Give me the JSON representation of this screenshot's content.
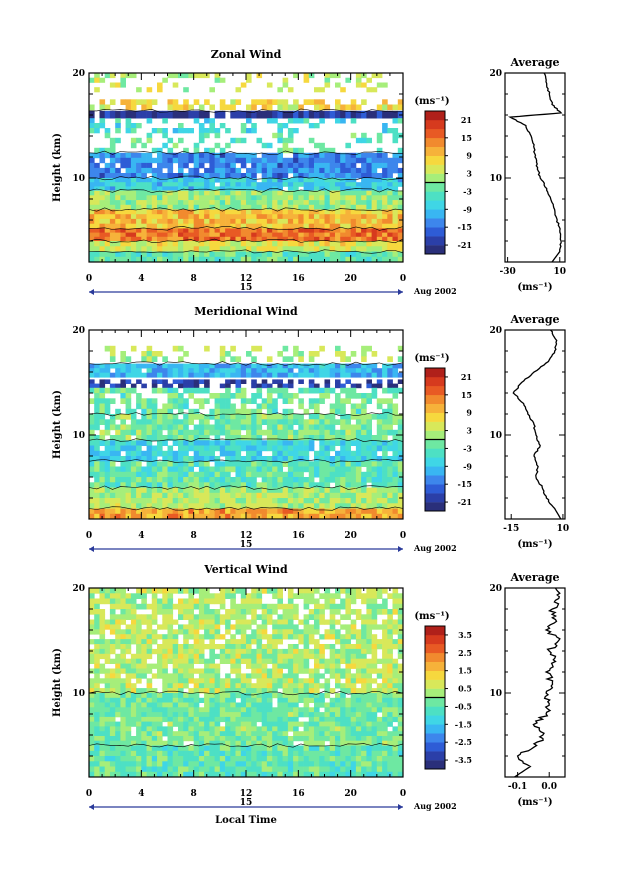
{
  "chart_data": [
    {
      "type": "heatmap",
      "title": "Zonal Wind",
      "ylabel": "Height (km)",
      "ylim": [
        2,
        20
      ],
      "yticks": [
        "20",
        "10"
      ],
      "xticks": [
        "0",
        "4",
        "8",
        "12",
        "16",
        "20",
        "0"
      ],
      "xlim": [
        0,
        24
      ],
      "date_day": "15",
      "date_label": "Aug 2002",
      "colorbar_unit": "(ms⁻¹)",
      "colorbar_ticks": [
        "21",
        "15",
        "9",
        "3",
        "-3",
        "-9",
        "-15",
        "-21"
      ],
      "colorbar_range": [
        -24,
        24
      ],
      "layers": [
        {
          "from": 18.2,
          "to": 20.0,
          "value": 3,
          "coverage": 0.25
        },
        {
          "from": 16.5,
          "to": 17.5,
          "value": 6,
          "coverage": 0.6
        },
        {
          "from": 15.7,
          "to": 16.4,
          "value": -21,
          "coverage": 0.97
        },
        {
          "from": 14.3,
          "to": 15.7,
          "value": -6,
          "coverage": 0.35
        },
        {
          "from": 12.4,
          "to": 14.3,
          "value": -3,
          "coverage": 0.3
        },
        {
          "from": 10.0,
          "to": 12.4,
          "value": -14,
          "coverage": 0.9
        },
        {
          "from": 8.8,
          "to": 10.0,
          "value": -8,
          "coverage": 0.95
        },
        {
          "from": 7.0,
          "to": 8.8,
          "value": 1,
          "coverage": 1.0
        },
        {
          "from": 5.2,
          "to": 7.0,
          "value": 9,
          "coverage": 1.0
        },
        {
          "from": 4.0,
          "to": 5.2,
          "value": 15,
          "coverage": 1.0
        },
        {
          "from": 3.0,
          "to": 4.0,
          "value": 5,
          "coverage": 1.0
        },
        {
          "from": 2.0,
          "to": 3.0,
          "value": -3,
          "coverage": 1.0
        }
      ],
      "average": {
        "title": "Average",
        "unit": "(ms⁻¹)",
        "xticks": [
          "-30",
          "10"
        ],
        "xlim": [
          -32,
          14
        ],
        "height": [
          2,
          3,
          4,
          5,
          6,
          7,
          8,
          9,
          10,
          11,
          12,
          13,
          14,
          15,
          15.8,
          16.2,
          17,
          18,
          19,
          20
        ],
        "value": [
          4,
          10,
          11,
          10,
          8,
          6,
          3,
          0,
          -5,
          -7,
          -9,
          -10,
          -12,
          -16,
          -28,
          11,
          4,
          2,
          0,
          -2
        ]
      }
    },
    {
      "type": "heatmap",
      "title": "Meridional Wind",
      "ylabel": "Height (km)",
      "ylim": [
        2,
        20
      ],
      "yticks": [
        "20",
        "10"
      ],
      "xticks": [
        "0",
        "4",
        "8",
        "12",
        "16",
        "20",
        "0"
      ],
      "xlim": [
        0,
        24
      ],
      "date_day": "15",
      "date_label": "Aug 2002",
      "colorbar_unit": "(ms⁻¹)",
      "colorbar_ticks": [
        "21",
        "15",
        "9",
        "3",
        "-3",
        "-9",
        "-15",
        "-21"
      ],
      "colorbar_range": [
        -24,
        24
      ],
      "layers": [
        {
          "from": 17.0,
          "to": 18.5,
          "value": 2,
          "coverage": 0.25
        },
        {
          "from": 15.5,
          "to": 16.8,
          "value": -10,
          "coverage": 0.97
        },
        {
          "from": 14.5,
          "to": 15.3,
          "value": -20,
          "coverage": 0.6
        },
        {
          "from": 12.0,
          "to": 14.5,
          "value": -2,
          "coverage": 0.6
        },
        {
          "from": 9.5,
          "to": 12.0,
          "value": -1,
          "coverage": 0.9
        },
        {
          "from": 7.5,
          "to": 9.5,
          "value": -7,
          "coverage": 0.9
        },
        {
          "from": 5.0,
          "to": 7.5,
          "value": -3,
          "coverage": 0.95
        },
        {
          "from": 3.0,
          "to": 5.0,
          "value": 2,
          "coverage": 1.0
        },
        {
          "from": 2.0,
          "to": 3.0,
          "value": 11,
          "coverage": 1.0
        }
      ],
      "average": {
        "title": "Average",
        "unit": "(ms⁻¹)",
        "xticks": [
          "-15",
          "10"
        ],
        "xlim": [
          -18,
          11
        ],
        "height": [
          2,
          3,
          4,
          5,
          6,
          7,
          8,
          9,
          10,
          11,
          12,
          13,
          14,
          15,
          16,
          17,
          18,
          19,
          20
        ],
        "value": [
          9,
          6,
          2,
          0,
          -3,
          -2,
          -4,
          -1,
          -3,
          -4,
          -7,
          -9,
          -14,
          -10,
          -4,
          3,
          6,
          7,
          4
        ]
      }
    },
    {
      "type": "heatmap",
      "title": "Vertical Wind",
      "ylabel": "Height (km)",
      "xlabel": "Local Time",
      "ylim": [
        2,
        20
      ],
      "yticks": [
        "20",
        "10"
      ],
      "xticks": [
        "0",
        "4",
        "8",
        "12",
        "16",
        "20",
        "0"
      ],
      "xlim": [
        0,
        24
      ],
      "date_day": "15",
      "date_label": "Aug 2002",
      "colorbar_unit": "(ms⁻¹)",
      "colorbar_ticks": [
        "3.5",
        "2.5",
        "1.5",
        "0.5",
        "-0.5",
        "-1.5",
        "-2.5",
        "-3.5"
      ],
      "colorbar_range": [
        -4,
        4
      ],
      "layers": [
        {
          "from": 17.0,
          "to": 20.0,
          "value": 0.3,
          "coverage": 0.8
        },
        {
          "from": 10.0,
          "to": 17.0,
          "value": 0.4,
          "coverage": 0.85
        },
        {
          "from": 5.0,
          "to": 10.0,
          "value": -0.2,
          "coverage": 0.95
        },
        {
          "from": 2.0,
          "to": 5.0,
          "value": -0.5,
          "coverage": 1.0
        }
      ],
      "average": {
        "title": "Average",
        "unit": "(ms⁻¹)",
        "xticks": [
          "-0.1",
          "0.0"
        ],
        "xlim": [
          -0.14,
          0.05
        ],
        "height": [
          2,
          3,
          4,
          5,
          6,
          7,
          8,
          9,
          10,
          11,
          12,
          13,
          14,
          15,
          16,
          17,
          18,
          19,
          20
        ],
        "value": [
          -0.11,
          -0.06,
          -0.1,
          -0.04,
          -0.02,
          -0.05,
          -0.01,
          0.0,
          -0.01,
          0.01,
          -0.01,
          0.02,
          0.0,
          0.03,
          -0.01,
          0.02,
          0.01,
          0.03,
          0.02
        ]
      }
    }
  ]
}
